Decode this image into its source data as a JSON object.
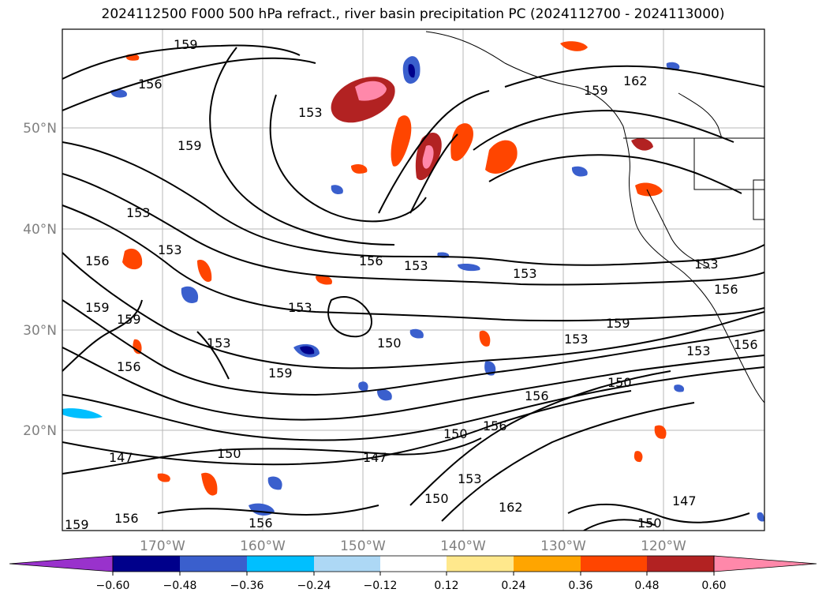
{
  "title": "2024112500 F000 500 hPa refract., river basin precipitation PC (2024112700 - 2024113000)",
  "map": {
    "lat_labels": [
      "50°N",
      "40°N",
      "30°N",
      "20°N"
    ],
    "lon_labels": [
      "170°W",
      "160°W",
      "150°W",
      "140°W",
      "130°W",
      "120°W"
    ],
    "contour_labels": [
      "159",
      "156",
      "153",
      "159",
      "153",
      "153",
      "156",
      "153",
      "156",
      "159",
      "159",
      "153",
      "153",
      "156",
      "159",
      "150",
      "156",
      "147",
      "150",
      "150",
      "153",
      "156",
      "150",
      "153",
      "156",
      "147",
      "156",
      "159",
      "162",
      "159",
      "153",
      "153",
      "156",
      "150",
      "147",
      "162",
      "156",
      "153",
      "159",
      "150"
    ]
  },
  "colorbar": {
    "tick_labels": [
      "−0.60",
      "−0.48",
      "−0.36",
      "−0.24",
      "−0.12",
      "0.12",
      "0.24",
      "0.36",
      "0.48",
      "0.60"
    ],
    "colors": [
      "#9932cc",
      "#00008b",
      "#3a5fcd",
      "#00bfff",
      "#add8f5",
      "#ffffff",
      "#ffe88c",
      "#ffa500",
      "#ff4500",
      "#b22222",
      "#ff88aa"
    ]
  }
}
